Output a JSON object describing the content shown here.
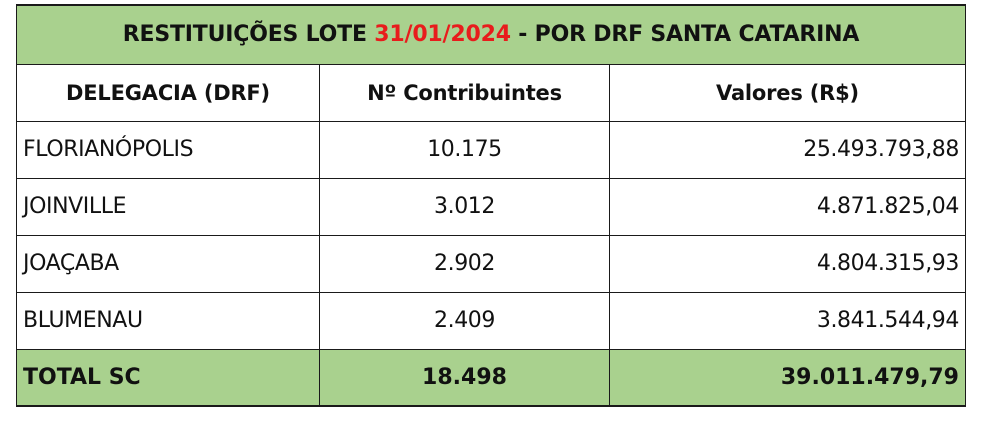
{
  "title": {
    "prefix": "RESTITUIÇÕES LOTE ",
    "date": "31/01/2024",
    "suffix": " - POR DRF SANTA CATARINA",
    "date_color": "#e81c1c",
    "background": "#a9d18e"
  },
  "columns": [
    {
      "label": "DELEGACIA (DRF)"
    },
    {
      "label": "Nº Contribuintes"
    },
    {
      "label": "Valores (R$)"
    }
  ],
  "rows": [
    {
      "delegacia": "FLORIANÓPOLIS",
      "contribuintes": "10.175",
      "valores": "25.493.793,88"
    },
    {
      "delegacia": "JOINVILLE",
      "contribuintes": "3.012",
      "valores": "4.871.825,04"
    },
    {
      "delegacia": "JOAÇABA",
      "contribuintes": "2.902",
      "valores": "4.804.315,93"
    },
    {
      "delegacia": "BLUMENAU",
      "contribuintes": "2.409",
      "valores": "3.841.544,94"
    }
  ],
  "total": {
    "label": "TOTAL SC",
    "contribuintes": "18.498",
    "valores": "39.011.479,79"
  }
}
